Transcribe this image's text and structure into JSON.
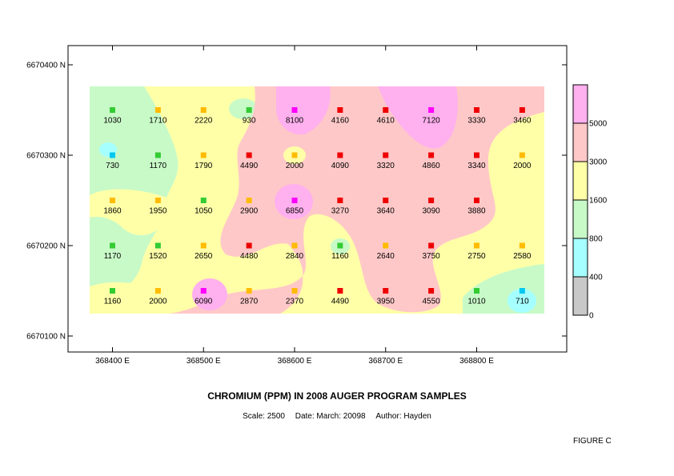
{
  "title": "CHROMIUM (PPM) IN 2008 AUGER PROGRAM SAMPLES",
  "scale": "Scale: 2500",
  "date": "Date: March: 20098",
  "author": "Author: Hayden",
  "figure": "FIGURE C",
  "y_ticks": [
    "6670400 N",
    "6670300 N",
    "6670200 N",
    "6670100 N"
  ],
  "x_ticks": [
    "368400 E",
    "368500 E",
    "368600 E",
    "368700 E",
    "368800 E"
  ],
  "colors": {
    "lt400": "#c8c8c8",
    "r400_800": "#a6ffff",
    "r800_1600": "#c8fac8",
    "r1600_3000": "#ffffa8",
    "r3000_5000": "#ffc8c8",
    "gt5000": "#ffb0ee",
    "mk_cyan": "#00c8f0",
    "mk_green": "#33cc33",
    "mk_orange": "#ffbb00",
    "mk_red": "#ee0000",
    "mk_magenta": "#ff00ff"
  },
  "legend": {
    "labels": [
      "0",
      "400",
      "800",
      "1600",
      "3000",
      "5000"
    ]
  },
  "chart_data": {
    "type": "heatmap",
    "title": "CHROMIUM (PPM) IN 2008 AUGER PROGRAM SAMPLES",
    "x_range": [
      368350,
      368900
    ],
    "y_range": [
      6670080,
      6670420
    ],
    "class_breaks": [
      0,
      400,
      800,
      1600,
      3000,
      5000
    ],
    "samples": [
      {
        "x": 368400,
        "y": 6670350,
        "value": "1030"
      },
      {
        "x": 368450,
        "y": 6670350,
        "value": "1710"
      },
      {
        "x": 368500,
        "y": 6670350,
        "value": "2220"
      },
      {
        "x": 368550,
        "y": 6670350,
        "value": "930"
      },
      {
        "x": 368600,
        "y": 6670350,
        "value": "8100"
      },
      {
        "x": 368650,
        "y": 6670350,
        "value": "4160"
      },
      {
        "x": 368700,
        "y": 6670350,
        "value": "4610"
      },
      {
        "x": 368750,
        "y": 6670350,
        "value": "7120"
      },
      {
        "x": 368800,
        "y": 6670350,
        "value": "3330"
      },
      {
        "x": 368850,
        "y": 6670350,
        "value": "3460"
      },
      {
        "x": 368400,
        "y": 6670300,
        "value": "730"
      },
      {
        "x": 368450,
        "y": 6670300,
        "value": "1170"
      },
      {
        "x": 368500,
        "y": 6670300,
        "value": "1790"
      },
      {
        "x": 368550,
        "y": 6670300,
        "value": "4490"
      },
      {
        "x": 368600,
        "y": 6670300,
        "value": "2000"
      },
      {
        "x": 368650,
        "y": 6670300,
        "value": "4090"
      },
      {
        "x": 368700,
        "y": 6670300,
        "value": "3320"
      },
      {
        "x": 368750,
        "y": 6670300,
        "value": "4860"
      },
      {
        "x": 368800,
        "y": 6670300,
        "value": "3340"
      },
      {
        "x": 368850,
        "y": 6670300,
        "value": "2000"
      },
      {
        "x": 368400,
        "y": 6670250,
        "value": "1860"
      },
      {
        "x": 368450,
        "y": 6670250,
        "value": "1950"
      },
      {
        "x": 368500,
        "y": 6670250,
        "value": "1050"
      },
      {
        "x": 368550,
        "y": 6670250,
        "value": "2900"
      },
      {
        "x": 368600,
        "y": 6670250,
        "value": "6850"
      },
      {
        "x": 368650,
        "y": 6670250,
        "value": "3270"
      },
      {
        "x": 368700,
        "y": 6670250,
        "value": "3640"
      },
      {
        "x": 368750,
        "y": 6670250,
        "value": "3090"
      },
      {
        "x": 368800,
        "y": 6670250,
        "value": "3880"
      },
      {
        "x": 368400,
        "y": 6670200,
        "value": "1170"
      },
      {
        "x": 368450,
        "y": 6670200,
        "value": "1520"
      },
      {
        "x": 368500,
        "y": 6670200,
        "value": "2650"
      },
      {
        "x": 368550,
        "y": 6670200,
        "value": "4480"
      },
      {
        "x": 368600,
        "y": 6670200,
        "value": "2840"
      },
      {
        "x": 368650,
        "y": 6670200,
        "value": "1160"
      },
      {
        "x": 368700,
        "y": 6670200,
        "value": "2640"
      },
      {
        "x": 368750,
        "y": 6670200,
        "value": "3750"
      },
      {
        "x": 368800,
        "y": 6670200,
        "value": "2750"
      },
      {
        "x": 368850,
        "y": 6670200,
        "value": "2580"
      },
      {
        "x": 368400,
        "y": 6670150,
        "value": "1160"
      },
      {
        "x": 368450,
        "y": 6670150,
        "value": "2000"
      },
      {
        "x": 368500,
        "y": 6670150,
        "value": "6090"
      },
      {
        "x": 368550,
        "y": 6670150,
        "value": "2870"
      },
      {
        "x": 368600,
        "y": 6670150,
        "value": "2370"
      },
      {
        "x": 368650,
        "y": 6670150,
        "value": "4490"
      },
      {
        "x": 368700,
        "y": 6670150,
        "value": "3950"
      },
      {
        "x": 368750,
        "y": 6670150,
        "value": "4550"
      },
      {
        "x": 368800,
        "y": 6670150,
        "value": "1010"
      },
      {
        "x": 368850,
        "y": 6670150,
        "value": "710"
      }
    ]
  }
}
